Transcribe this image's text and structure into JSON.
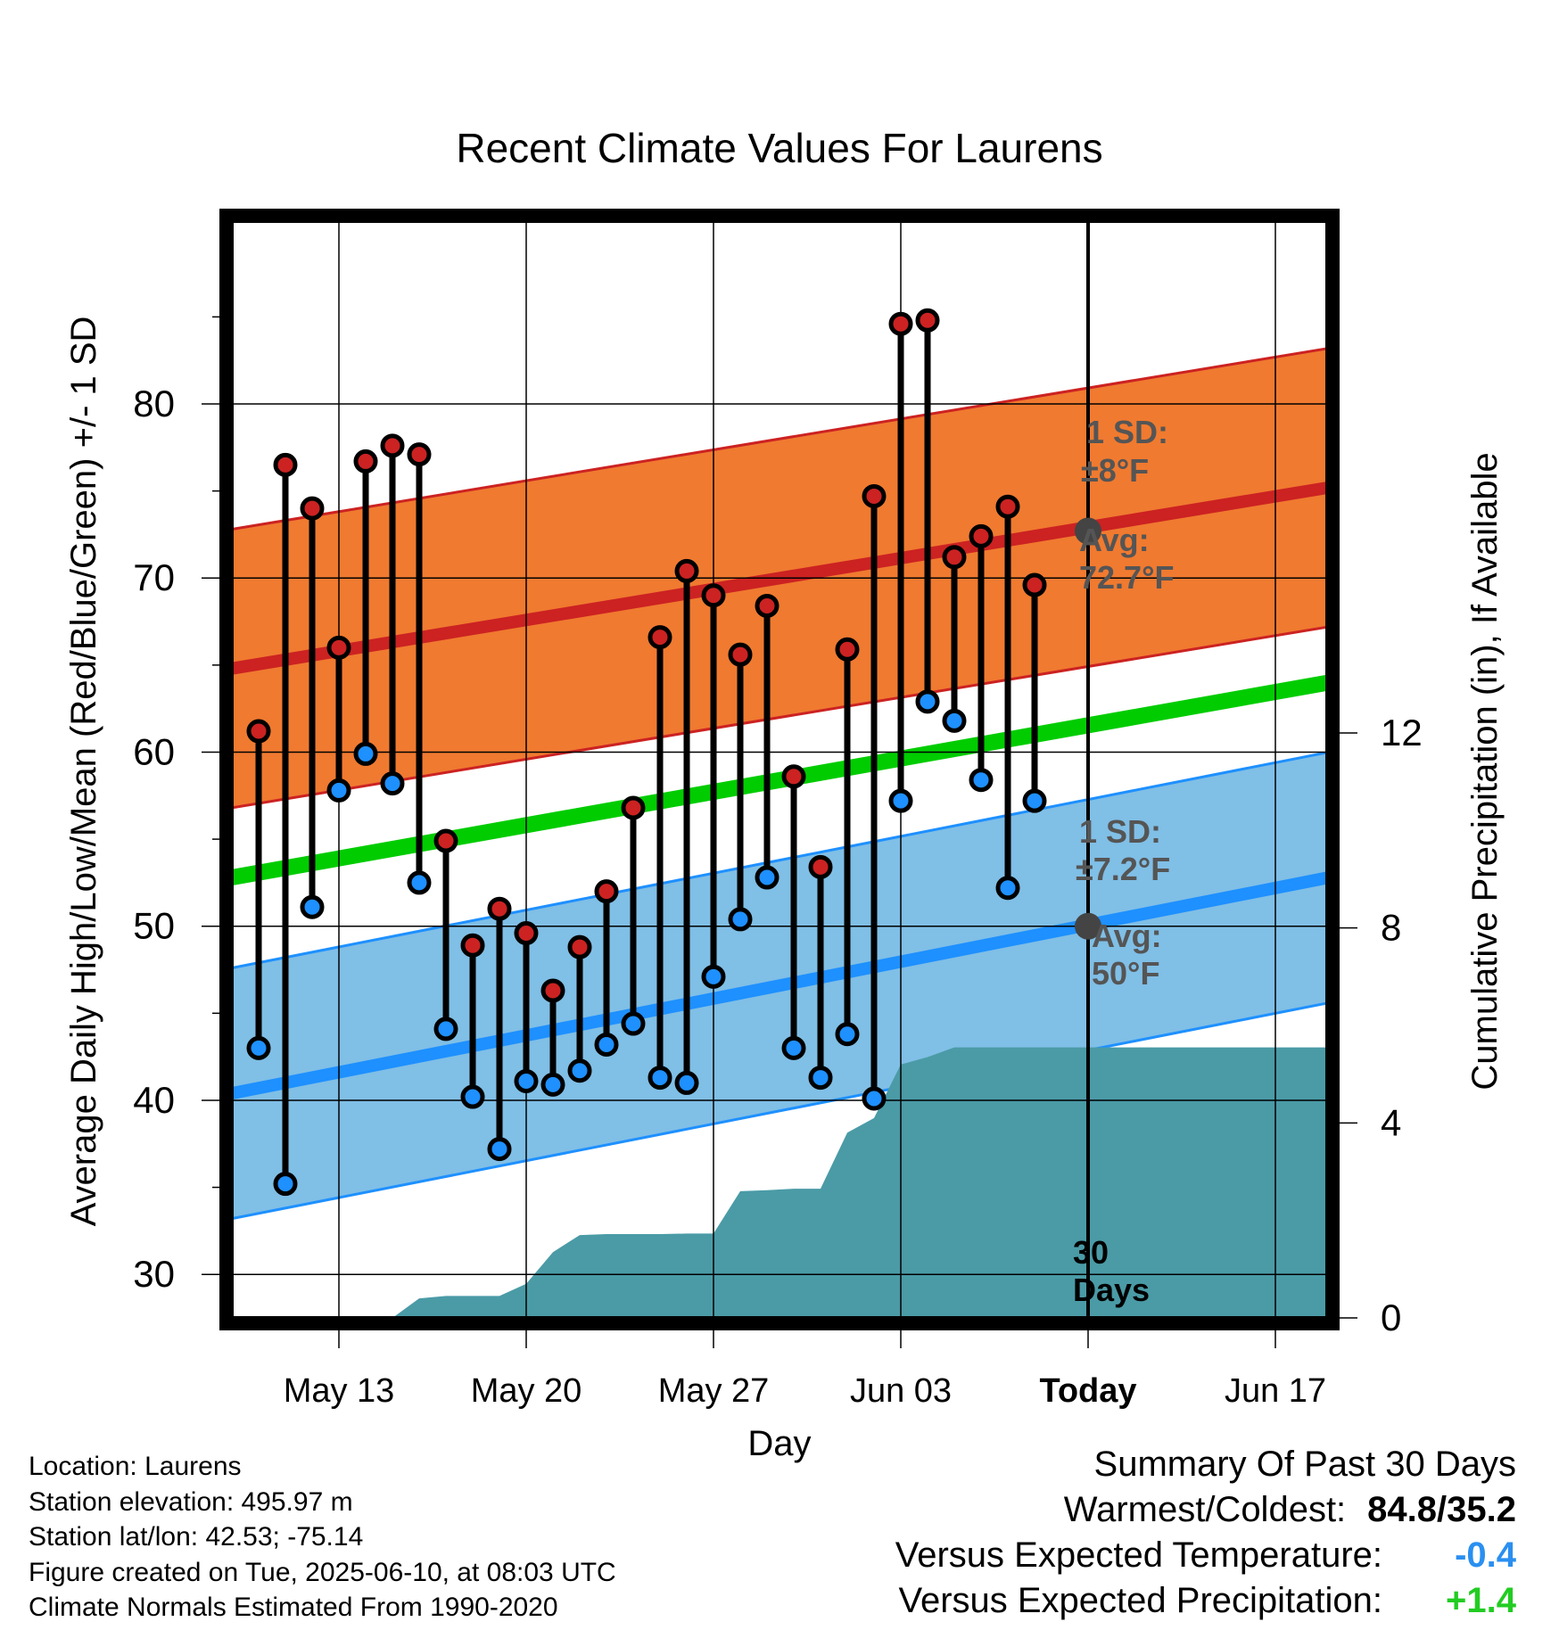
{
  "chart_data": {
    "type": "line",
    "title": "Recent Climate Values For Laurens",
    "xlabel": "Day",
    "ylabel": "Average Daily High/Low/Mean (Red/Blue/Green) +/- 1 SD",
    "y2label": "Cumulative Precipitation (in), If Available",
    "x_start": "May 09",
    "x_end": "Jun 19",
    "x_ticks": [
      "May 13",
      "May 20",
      "May 27",
      "Jun 03",
      "Today",
      "Jun 17"
    ],
    "today_label": "Today",
    "ylim": [
      27.5,
      90.5
    ],
    "y_ticks": [
      30,
      40,
      50,
      60,
      70,
      80
    ],
    "y2lim": [
      0,
      22.5
    ],
    "y2_ticks": [
      0,
      4,
      8,
      12
    ],
    "grid": true,
    "dates": [
      "May 10",
      "May 11",
      "May 12",
      "May 13",
      "May 14",
      "May 15",
      "May 16",
      "May 17",
      "May 18",
      "May 19",
      "May 20",
      "May 21",
      "May 22",
      "May 23",
      "May 24",
      "May 25",
      "May 26",
      "May 27",
      "May 28",
      "May 29",
      "May 30",
      "May 31",
      "Jun 01",
      "Jun 02",
      "Jun 03",
      "Jun 04",
      "Jun 05",
      "Jun 06",
      "Jun 07",
      "Jun 08",
      "Jun 09"
    ],
    "series": [
      {
        "name": "High",
        "color": "#cc2222",
        "values": [
          61.2,
          76.5,
          74.0,
          66.0,
          76.7,
          77.6,
          77.1,
          54.9,
          48.9,
          51.0,
          49.6,
          46.3,
          48.8,
          52.0,
          56.8,
          66.6,
          70.4,
          69.0,
          65.6,
          68.4,
          58.6,
          53.4,
          65.9,
          74.7,
          84.6,
          84.8,
          71.2,
          72.4,
          74.1,
          69.6,
          null
        ]
      },
      {
        "name": "Low",
        "color": "#1e90ff",
        "values": [
          43.0,
          35.2,
          51.1,
          57.8,
          59.9,
          58.2,
          52.5,
          44.1,
          40.2,
          37.2,
          41.1,
          40.9,
          41.7,
          43.2,
          44.4,
          41.3,
          41.0,
          47.1,
          50.4,
          52.8,
          43.0,
          41.3,
          43.8,
          40.1,
          57.2,
          62.9,
          61.8,
          58.4,
          52.2,
          57.2,
          null
        ]
      }
    ],
    "normal_high": {
      "name": "Avg High",
      "start": 64.8,
      "end": 75.2,
      "sd": 8,
      "color": "#cc2222",
      "band_color": "#f07a30"
    },
    "normal_low": {
      "name": "Avg Low",
      "start": 40.4,
      "end": 52.8,
      "sd": 7.2,
      "color": "#1e90ff",
      "band_color": "#80bfe6"
    },
    "normal_mean": {
      "name": "Avg Mean",
      "start": 52.8,
      "end": 64.0,
      "color": "#00cc00"
    },
    "precip": {
      "color": "#4a9ba6",
      "values": [
        0,
        0,
        0,
        0,
        0,
        0,
        0.4,
        0.45,
        0.45,
        0.45,
        0.7,
        1.35,
        1.7,
        1.72,
        1.72,
        1.72,
        1.73,
        1.73,
        2.6,
        2.62,
        2.65,
        2.65,
        3.8,
        4.1,
        5.2,
        5.35,
        5.55,
        5.55,
        5.55,
        5.55,
        5.55,
        5.55,
        5.55,
        5.55,
        5.55,
        5.55,
        5.55,
        5.55,
        5.55,
        5.55
      ],
      "start_index": 1
    },
    "annotations": {
      "high_sd_line1": "1 SD:",
      "high_sd_line2": "±8°F",
      "high_avg_line1": "Avg:",
      "high_avg_line2": "72.7°F",
      "high_avg_value": 72.7,
      "low_sd_line1": "1 SD:",
      "low_sd_line2": "±7.2°F",
      "low_avg_line1": "Avg:",
      "low_avg_line2": "50°F",
      "low_avg_value": 50,
      "days_line1": "30",
      "days_line2": "Days"
    }
  },
  "info": {
    "location": "Location: Laurens",
    "elevation": "Station elevation: 495.97 m",
    "latlon": "Station lat/lon: 42.53; -75.14",
    "created": "Figure created on Tue, 2025-06-10, at 08:03 UTC",
    "normals": "Climate Normals Estimated From 1990-2020"
  },
  "summary": {
    "title": "Summary Of Past 30 Days",
    "warm_cold_label": "Warmest/Coldest:",
    "warm_cold_value": "84.8/35.2",
    "temp_label": "Versus Expected Temperature:",
    "temp_value": "-0.4",
    "temp_color": "#2a8ff0",
    "precip_label": "Versus Expected Precipitation:",
    "precip_value": "+1.4",
    "precip_color": "#22cc22"
  }
}
